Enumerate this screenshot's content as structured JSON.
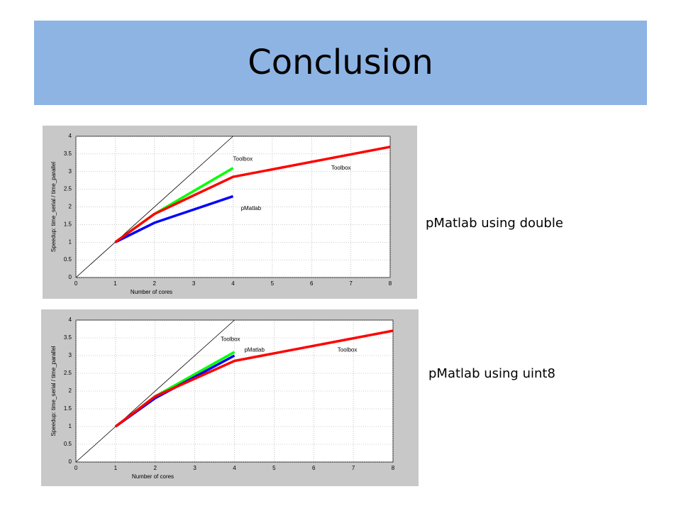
{
  "slide_title": "Conclusion",
  "captions": [
    "pMatlab using double",
    "pMatlab using uint8"
  ],
  "chart_data": [
    {
      "type": "line",
      "xlabel": "Number of cores",
      "ylabel": "Speedup: time_serial / time_parallel",
      "xlim": [
        0,
        8
      ],
      "ylim": [
        0,
        4
      ],
      "xticks": [
        0,
        1,
        2,
        3,
        4,
        5,
        6,
        7,
        8
      ],
      "yticks": [
        0,
        0.5,
        1,
        1.5,
        2,
        2.5,
        3,
        3.5,
        4
      ],
      "grid": true,
      "series": [
        {
          "color": "#000000",
          "x": [
            0,
            4
          ],
          "values": [
            0,
            4
          ]
        },
        {
          "color": "#00ff00",
          "x": [
            1,
            2,
            4
          ],
          "values": [
            1,
            1.8,
            3.1
          ]
        },
        {
          "color": "#0000ff",
          "x": [
            1,
            2,
            4
          ],
          "values": [
            1,
            1.55,
            2.3
          ]
        },
        {
          "color": "#ff0000",
          "x": [
            1,
            2,
            4,
            8
          ],
          "values": [
            1,
            1.8,
            2.85,
            3.7
          ]
        }
      ],
      "annotations": [
        {
          "text": "Toolbox",
          "x": 4,
          "y": 3.35
        },
        {
          "text": "Toolbox",
          "x": 6.5,
          "y": 3.1
        },
        {
          "text": "pMatlab",
          "x": 4.2,
          "y": 1.95
        }
      ]
    },
    {
      "type": "line",
      "xlabel": "Number of cores",
      "ylabel": "Speedup: time_serial / time_parallel",
      "xlim": [
        0,
        8
      ],
      "ylim": [
        0,
        4
      ],
      "xticks": [
        0,
        1,
        2,
        3,
        4,
        5,
        6,
        7,
        8
      ],
      "yticks": [
        0,
        0.5,
        1,
        1.5,
        2,
        2.5,
        3,
        3.5,
        4
      ],
      "grid": true,
      "series": [
        {
          "color": "#000000",
          "x": [
            0,
            4
          ],
          "values": [
            0,
            4
          ]
        },
        {
          "color": "#00ff00",
          "x": [
            1,
            2,
            4
          ],
          "values": [
            1,
            1.85,
            3.1
          ]
        },
        {
          "color": "#0000ff",
          "x": [
            1,
            2,
            4
          ],
          "values": [
            1,
            1.8,
            3.0
          ]
        },
        {
          "color": "#ff0000",
          "x": [
            1,
            2,
            4,
            8
          ],
          "values": [
            1,
            1.85,
            2.85,
            3.7
          ]
        }
      ],
      "annotations": [
        {
          "text": "Toolbox",
          "x": 3.65,
          "y": 3.45
        },
        {
          "text": "pMatlab",
          "x": 4.25,
          "y": 3.15
        },
        {
          "text": "Toolbox",
          "x": 6.6,
          "y": 3.15
        }
      ]
    }
  ]
}
